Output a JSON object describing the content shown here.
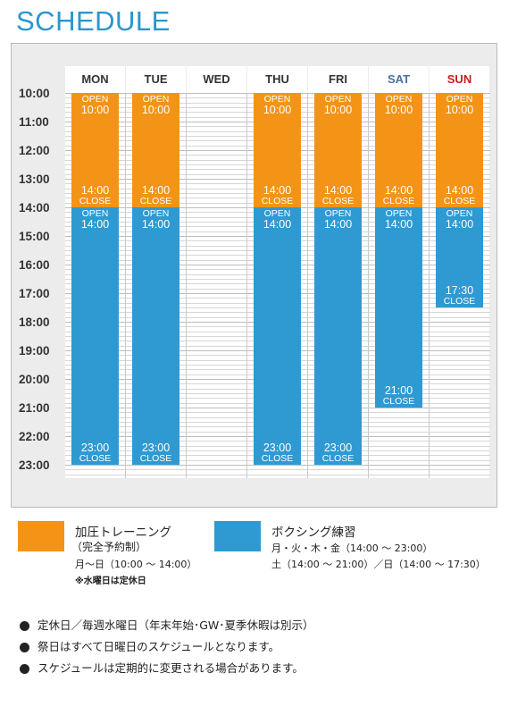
{
  "title": "SCHEDULE",
  "days": [
    {
      "label": "MON",
      "color": "#333333"
    },
    {
      "label": "TUE",
      "color": "#333333"
    },
    {
      "label": "WED",
      "color": "#333333"
    },
    {
      "label": "THU",
      "color": "#333333"
    },
    {
      "label": "FRI",
      "color": "#333333"
    },
    {
      "label": "SAT",
      "color": "#4a6fa5"
    },
    {
      "label": "SUN",
      "color": "#c81e1e"
    }
  ],
  "times": [
    "10:00",
    "11:00",
    "12:00",
    "13:00",
    "14:00",
    "15:00",
    "16:00",
    "17:00",
    "18:00",
    "19:00",
    "20:00",
    "21:00",
    "22:00",
    "23:00"
  ],
  "colors": {
    "training": "#f39416",
    "boxing": "#2f9ad2",
    "title": "#2a96cf"
  },
  "blocks": [
    {
      "day": 0,
      "type": "training",
      "start": 10,
      "end": 14,
      "open_word": "OPEN",
      "open_time": "10:00",
      "close_time": "14:00",
      "close_word": "CLOSE"
    },
    {
      "day": 1,
      "type": "training",
      "start": 10,
      "end": 14,
      "open_word": "OPEN",
      "open_time": "10:00",
      "close_time": "14:00",
      "close_word": "CLOSE"
    },
    {
      "day": 3,
      "type": "training",
      "start": 10,
      "end": 14,
      "open_word": "OPEN",
      "open_time": "10:00",
      "close_time": "14:00",
      "close_word": "CLOSE"
    },
    {
      "day": 4,
      "type": "training",
      "start": 10,
      "end": 14,
      "open_word": "OPEN",
      "open_time": "10:00",
      "close_time": "14:00",
      "close_word": "CLOSE"
    },
    {
      "day": 5,
      "type": "training",
      "start": 10,
      "end": 14,
      "open_word": "OPEN",
      "open_time": "10:00",
      "close_time": "14:00",
      "close_word": "CLOSE"
    },
    {
      "day": 6,
      "type": "training",
      "start": 10,
      "end": 14,
      "open_word": "OPEN",
      "open_time": "10:00",
      "close_time": "14:00",
      "close_word": "CLOSE"
    },
    {
      "day": 0,
      "type": "boxing",
      "start": 14,
      "end": 23,
      "open_word": "OPEN",
      "open_time": "14:00",
      "close_time": "23:00",
      "close_word": "CLOSE"
    },
    {
      "day": 1,
      "type": "boxing",
      "start": 14,
      "end": 23,
      "open_word": "OPEN",
      "open_time": "14:00",
      "close_time": "23:00",
      "close_word": "CLOSE"
    },
    {
      "day": 3,
      "type": "boxing",
      "start": 14,
      "end": 23,
      "open_word": "OPEN",
      "open_time": "14:00",
      "close_time": "23:00",
      "close_word": "CLOSE"
    },
    {
      "day": 4,
      "type": "boxing",
      "start": 14,
      "end": 23,
      "open_word": "OPEN",
      "open_time": "14:00",
      "close_time": "23:00",
      "close_word": "CLOSE"
    },
    {
      "day": 5,
      "type": "boxing",
      "start": 14,
      "end": 21,
      "open_word": "OPEN",
      "open_time": "14:00",
      "close_time": "21:00",
      "close_word": "CLOSE"
    },
    {
      "day": 6,
      "type": "boxing",
      "start": 14,
      "end": 17.5,
      "open_word": "OPEN",
      "open_time": "14:00",
      "close_time": "17:30",
      "close_word": "CLOSE"
    }
  ],
  "legend": {
    "training": {
      "name": "加圧トレーニング",
      "sub": "（完全予約制）",
      "hours": "月〜日（10:00 〜 14:00）",
      "note": "※水曜日は定休日"
    },
    "boxing": {
      "name": "ボクシング練習",
      "hours1": "月・火・木・金（14:00 〜 23:00）",
      "hours2": "土（14:00 〜 21:00）／日（14:00 〜 17:30）"
    }
  },
  "notes": [
    "定休日／毎週水曜日（年末年始･GW･夏季休暇は別示）",
    "祭日はすべて日曜日のスケジュールとなります。",
    "スケジュールは定期的に変更される場合があります。"
  ]
}
